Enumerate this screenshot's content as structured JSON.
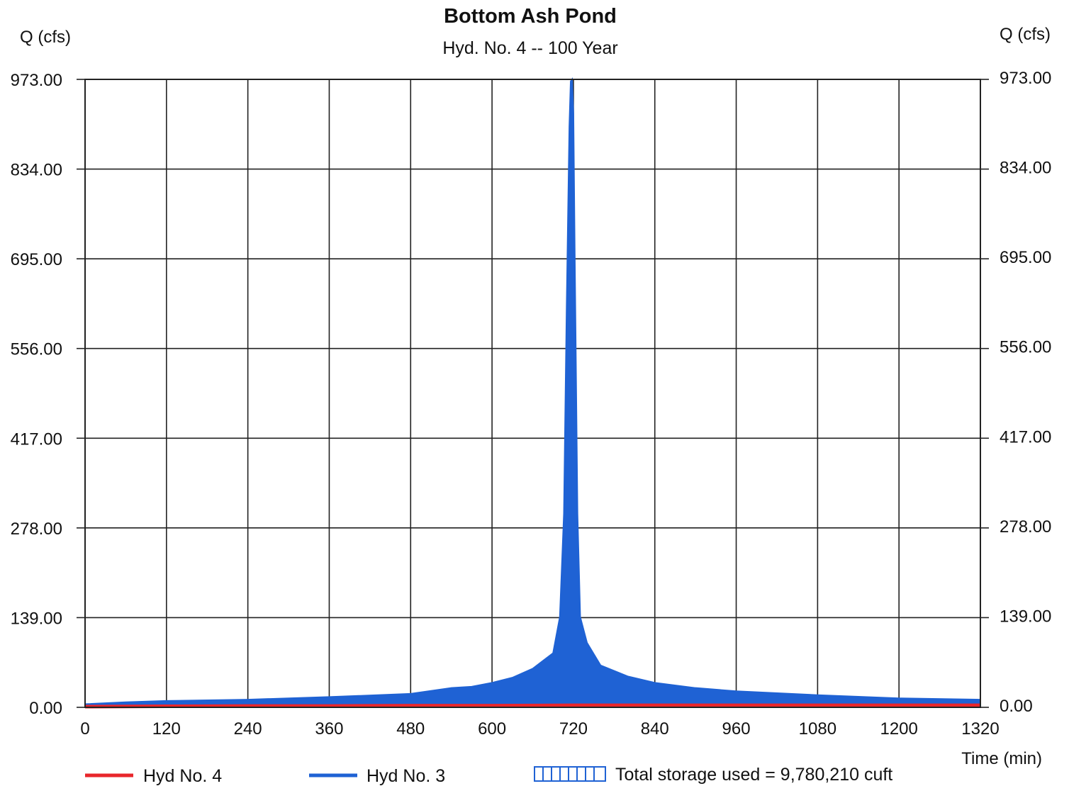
{
  "chart_data": {
    "type": "area",
    "title": "Bottom Ash Pond",
    "subtitle": "Hyd. No. 4 -- 100 Year",
    "ylabel_left": "Q (cfs)",
    "ylabel_right": "Q (cfs)",
    "xlabel": "Time (min)",
    "xlim": [
      0,
      1320
    ],
    "ylim": [
      0,
      973
    ],
    "x_ticks": [
      "0",
      "120",
      "240",
      "360",
      "480",
      "600",
      "720",
      "840",
      "960",
      "1080",
      "1200",
      "1320"
    ],
    "y_ticks": [
      "0.00",
      "139.00",
      "278.00",
      "417.00",
      "556.00",
      "695.00",
      "834.00",
      "973.00"
    ],
    "grid": true,
    "legend_position": "bottom",
    "series": [
      {
        "name": "Hyd No. 3",
        "color": "#1f62d4",
        "x": [
          0,
          60,
          120,
          240,
          360,
          480,
          540,
          570,
          600,
          630,
          660,
          690,
          700,
          706,
          710,
          714,
          716,
          718,
          720,
          722,
          726,
          730,
          740,
          760,
          800,
          840,
          900,
          960,
          1080,
          1200,
          1320
        ],
        "y": [
          5,
          8,
          10,
          12,
          16,
          21,
          30,
          32,
          38,
          46,
          60,
          84,
          140,
          300,
          620,
          900,
          970,
          973,
          920,
          700,
          300,
          140,
          100,
          65,
          48,
          38,
          30,
          25,
          19,
          14,
          12
        ]
      },
      {
        "name": "Hyd No. 4",
        "color": "#e8262b",
        "x": [
          0,
          120,
          240,
          360,
          480,
          600,
          720,
          840,
          960,
          1080,
          1200,
          1320
        ],
        "y": [
          0,
          0.5,
          1,
          1,
          1.5,
          1.5,
          2,
          2,
          2,
          2,
          2,
          2
        ]
      }
    ],
    "annotation": "Total storage used = 9,780,210 cuft"
  }
}
